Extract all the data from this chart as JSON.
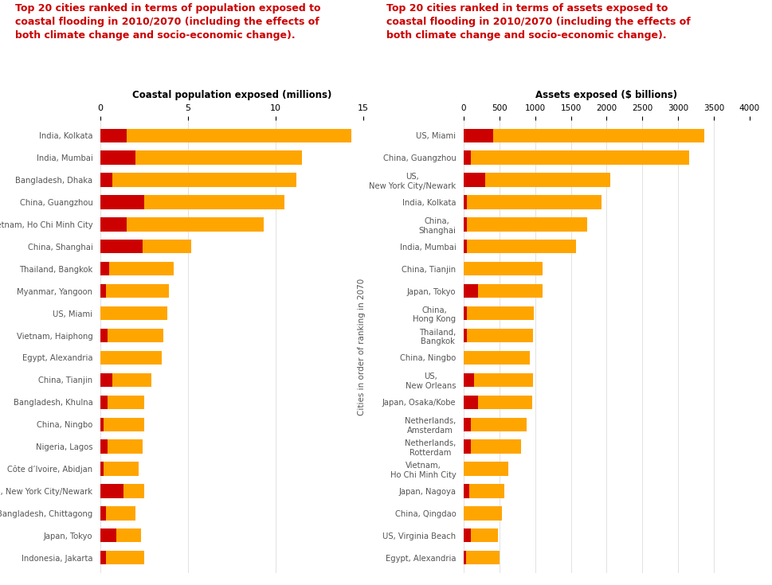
{
  "left_title_line1": "Top 20 cities ranked in terms of population exposed to",
  "left_title_line2": "coastal flooding in 2010/2070 (including the effects of",
  "left_title_line3": "both climate change and socio-economic change).",
  "right_title_line1": "Top 20 cities ranked in terms of assets exposed to",
  "right_title_line2": "coastal flooding in 2010/2070 (including the effects of",
  "right_title_line3": "both climate change and socio-economic change).",
  "left_xlabel": "Coastal population exposed (millions)",
  "right_xlabel": "Assets exposed ($ billions)",
  "left_ylabel": "Cities in order of ranking in 2070",
  "right_ylabel": "Cities in order of ranking in 2070",
  "left_cities": [
    "Indonesia, Jakarta",
    "Japan, Tokyo",
    "Bangladesh, Chittagong",
    "US, New York City/Newark",
    "Côte d’Ivoire, Abidjan",
    "Nigeria, Lagos",
    "China, Ningbo",
    "Bangladesh, Khulna",
    "China, Tianjin",
    "Egypt, Alexandria",
    "Vietnam, Haiphong",
    "US, Miami",
    "Myanmar, Yangoon",
    "Thailand, Bangkok",
    "China, Shanghai",
    "Vietnam, Ho Chi Minh City",
    "China, Guangzhou",
    "Bangladesh, Dhaka",
    "India, Mumbai",
    "India, Kolkata"
  ],
  "left_red": [
    0.3,
    0.9,
    0.3,
    1.3,
    0.2,
    0.4,
    0.2,
    0.4,
    0.7,
    0.0,
    0.4,
    0.0,
    0.3,
    0.5,
    2.4,
    1.5,
    2.5,
    0.7,
    2.0,
    1.5
  ],
  "left_orange": [
    2.2,
    1.4,
    1.7,
    1.2,
    2.0,
    2.0,
    2.3,
    2.1,
    2.2,
    3.5,
    3.2,
    3.8,
    3.6,
    3.7,
    2.8,
    7.8,
    8.0,
    10.5,
    9.5,
    12.8
  ],
  "left_xlim": [
    0,
    15
  ],
  "left_xticks": [
    0,
    5,
    10,
    15
  ],
  "right_cities": [
    "Egypt, Alexandria",
    "US, Virginia Beach",
    "China, Qingdao",
    "Japan, Nagoya",
    "Vietnam,\nHo Chi Minh City",
    "Netherlands,\nRotterdam",
    "Netherlands,\nAmsterdam",
    "Japan, Osaka/Kobe",
    "US,\nNew Orleans",
    "China, Ningbo",
    "Thailand,\nBangkok",
    "China,\nHong Kong",
    "Japan, Tokyo",
    "China, Tianjin",
    "India, Mumbai",
    "China,\nShanghai",
    "India, Kolkata",
    "US,\nNew York City/Newark",
    "China, Guangzhou",
    "US, Miami"
  ],
  "right_red": [
    30,
    100,
    0,
    80,
    0,
    100,
    100,
    200,
    150,
    0,
    50,
    50,
    200,
    0,
    50,
    50,
    50,
    300,
    100,
    416
  ],
  "right_orange": [
    470,
    380,
    530,
    490,
    620,
    700,
    780,
    760,
    820,
    920,
    920,
    930,
    900,
    1100,
    1520,
    1680,
    1880,
    1750,
    3050,
    2950
  ],
  "right_xlim": [
    0,
    4000
  ],
  "right_xticks": [
    0,
    500,
    1000,
    1500,
    2000,
    2500,
    3000,
    3500,
    4000
  ],
  "orange_color": "#FFA500",
  "red_color": "#CC0000",
  "title_color": "#CC0000",
  "label_color": "#555555",
  "axis_label_color": "#000000",
  "bg_color": "#FFFFFF",
  "grid_color": "#dddddd"
}
